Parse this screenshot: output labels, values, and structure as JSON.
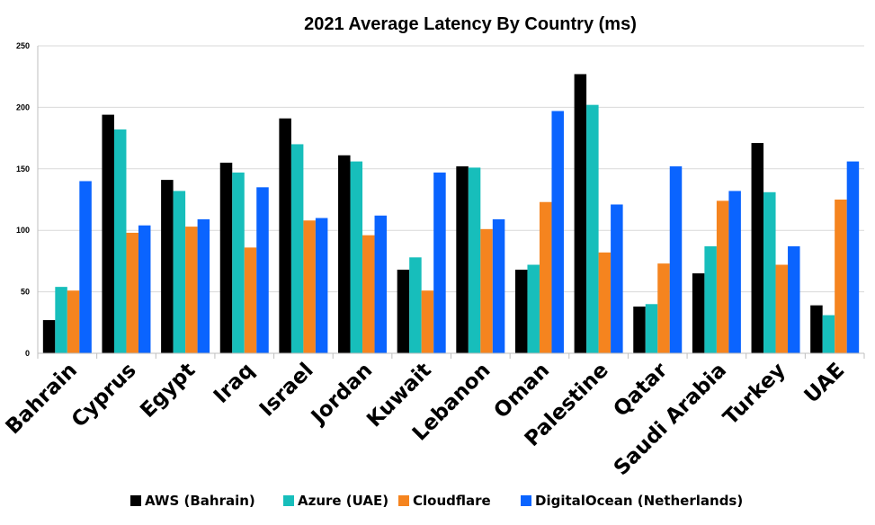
{
  "chart_data": {
    "type": "bar",
    "title": "2021 Average Latency By Country (ms)",
    "xlabel": "",
    "ylabel": "",
    "ylim": [
      0,
      250
    ],
    "yticks": [
      0,
      50,
      100,
      150,
      200,
      250
    ],
    "grid": true,
    "legend_position": "bottom",
    "categories": [
      "Bahrain",
      "Cyprus",
      "Egypt",
      "Iraq",
      "Israel",
      "Jordan",
      "Kuwait",
      "Lebanon",
      "Oman",
      "Palestine",
      "Qatar",
      "Saudi Arabia",
      "Turkey",
      "UAE"
    ],
    "series": [
      {
        "name": "AWS (Bahrain)",
        "color": "#000000",
        "values": [
          27,
          194,
          141,
          155,
          191,
          161,
          68,
          152,
          68,
          227,
          38,
          65,
          171,
          39
        ]
      },
      {
        "name": "Azure (UAE)",
        "color": "#17BEBB",
        "values": [
          54,
          182,
          132,
          147,
          170,
          156,
          78,
          151,
          72,
          202,
          40,
          87,
          131,
          31
        ]
      },
      {
        "name": "Cloudflare",
        "color": "#F5841F",
        "values": [
          51,
          98,
          103,
          86,
          108,
          96,
          51,
          101,
          123,
          82,
          73,
          124,
          72,
          125
        ]
      },
      {
        "name": "DigitalOcean (Netherlands)",
        "color": "#0A64FF",
        "values": [
          140,
          104,
          109,
          135,
          110,
          112,
          147,
          109,
          197,
          121,
          152,
          132,
          87,
          156
        ]
      }
    ]
  }
}
